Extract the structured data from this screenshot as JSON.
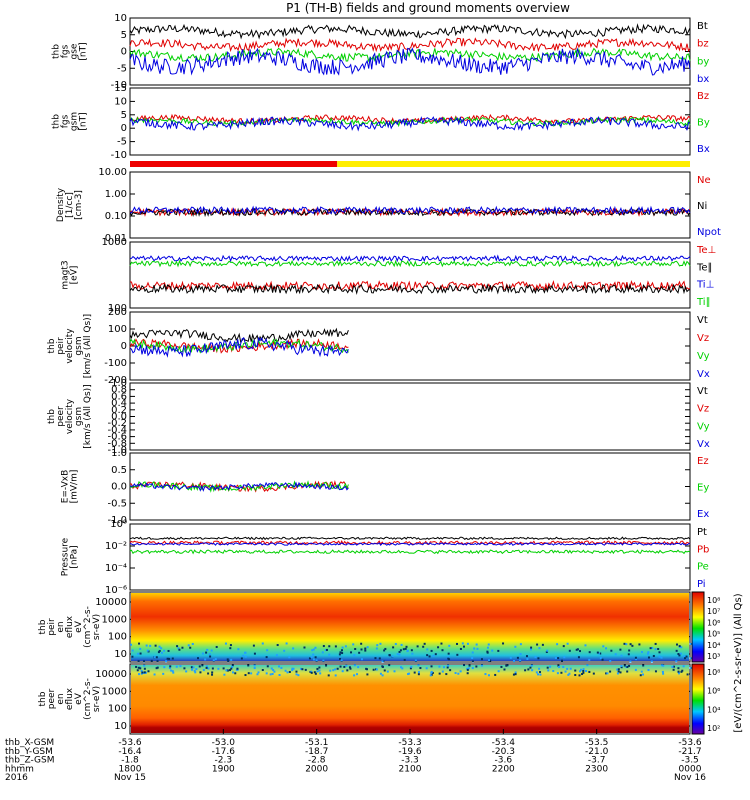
{
  "title": "P1 (TH-B) fields and ground moments overview",
  "colors": {
    "black": "#000000",
    "red": "#e00000",
    "green": "#00d000",
    "blue": "#0000e0",
    "yellow": "#ffee00",
    "bar_red": "#ee0000"
  },
  "chart_data": [
    {
      "type": "line",
      "ylabel": [
        "thb",
        "fgs",
        "gse",
        "[nT]"
      ],
      "ylim": [
        -10,
        10
      ],
      "yticks": [
        "10",
        "5",
        "0",
        "-5",
        "-10"
      ],
      "series": [
        {
          "name": "Bt",
          "color": "black",
          "base": 6,
          "amp": 2
        },
        {
          "name": "bz",
          "color": "red",
          "base": 2,
          "amp": 2
        },
        {
          "name": "by",
          "color": "green",
          "base": -1,
          "amp": 2
        },
        {
          "name": "bx",
          "color": "blue",
          "base": -3,
          "amp": 4
        }
      ]
    },
    {
      "type": "line",
      "ylabel": [
        "thb",
        "fgs",
        "gsm",
        "[nT]"
      ],
      "ylim": [
        -15,
        15
      ],
      "yticks": [
        "15",
        "10",
        "5",
        "0",
        "-5",
        "-10"
      ],
      "series": [
        {
          "name": "Bz",
          "color": "red",
          "base": 1,
          "amp": 2
        },
        {
          "name": "By",
          "color": "green",
          "base": 0,
          "amp": 2
        },
        {
          "name": "Bx",
          "color": "blue",
          "base": -1,
          "amp": 3
        }
      ]
    },
    {
      "type": "line",
      "ylabel": [
        "Density",
        "[1/cc]",
        "[cm-3]"
      ],
      "scale": "log",
      "yticks": [
        "10.00",
        "1.00",
        "0.10",
        "0.01"
      ],
      "series": [
        {
          "name": "Ne",
          "color": "red",
          "base": 0.15,
          "amp": 0.3
        },
        {
          "name": "Ni",
          "color": "black",
          "base": 0.15,
          "amp": 0.3
        },
        {
          "name": "Npot",
          "color": "blue",
          "base": 0.18,
          "amp": 0.3
        }
      ]
    },
    {
      "type": "line",
      "ylabel": [
        "magt3",
        "[eV]"
      ],
      "scale": "log",
      "yticks": [
        "1000",
        "100"
      ],
      "series": [
        {
          "name": "Te⊥",
          "color": "red",
          "base": 150,
          "amp": 0.25
        },
        {
          "name": "Te∥",
          "color": "black",
          "base": 120,
          "amp": 0.25
        },
        {
          "name": "Ti⊥",
          "color": "blue",
          "base": 1000,
          "amp": 0.15
        },
        {
          "name": "Ti∥",
          "color": "green",
          "base": 700,
          "amp": 0.15
        }
      ]
    },
    {
      "type": "line",
      "ylabel": [
        "thb",
        "peir",
        "velocity",
        "gsm",
        "[km/s (All Qs)]"
      ],
      "ylim": [
        -200,
        200
      ],
      "yticks": [
        "200",
        "100",
        "0",
        "-100",
        "-200"
      ],
      "series": [
        {
          "name": "Vt",
          "color": "black",
          "base": 60,
          "amp": 40
        },
        {
          "name": "Vz",
          "color": "red",
          "base": 0,
          "amp": 40
        },
        {
          "name": "Vy",
          "color": "green",
          "base": 0,
          "amp": 40
        },
        {
          "name": "Vx",
          "color": "blue",
          "base": -10,
          "amp": 60
        }
      ]
    },
    {
      "type": "line",
      "ylabel": [
        "thb",
        "peer",
        "velocity",
        "gsm",
        "[km/s (All Qs)]"
      ],
      "ylim": [
        -1,
        1
      ],
      "yticks": [
        "1.0",
        "0.8",
        "0.6",
        "0.4",
        "0.2",
        "0.0",
        "-0.2",
        "-0.4",
        "-0.6",
        "-0.8",
        "-1.0"
      ],
      "series": [
        {
          "name": "Vt",
          "color": "black"
        },
        {
          "name": "Vz",
          "color": "red"
        },
        {
          "name": "Vy",
          "color": "green"
        },
        {
          "name": "Vx",
          "color": "blue"
        }
      ]
    },
    {
      "type": "line",
      "ylabel": [
        "E=-VxB",
        "[mV/m]"
      ],
      "ylim": [
        -1,
        1
      ],
      "yticks": [
        "1.0",
        "0.5",
        "0.0",
        "-0.5",
        "-1.0"
      ],
      "series": [
        {
          "name": "Ez",
          "color": "red",
          "base": 0,
          "amp": 0.15
        },
        {
          "name": "Ey",
          "color": "green",
          "base": 0,
          "amp": 0.15
        },
        {
          "name": "Ex",
          "color": "blue",
          "base": 0,
          "amp": 0.12
        }
      ]
    },
    {
      "type": "line",
      "ylabel": [
        "Pressure",
        "[nPa]"
      ],
      "scale": "log",
      "yticks": [
        "10⁰",
        "10⁻²",
        "10⁻⁴",
        "10⁻⁶"
      ],
      "series": [
        {
          "name": "Pt",
          "color": "black",
          "base": 0.05,
          "amp": 0.2
        },
        {
          "name": "Pb",
          "color": "red",
          "base": 0.02,
          "amp": 0.3
        },
        {
          "name": "Pe",
          "color": "green",
          "base": 0.003,
          "amp": 0.3
        },
        {
          "name": "Pi",
          "color": "blue",
          "base": 0.015,
          "amp": 0.2
        }
      ]
    },
    {
      "type": "heatmap",
      "ylabel": [
        "thb",
        "peir",
        "en",
        "eflux",
        "eV",
        "(cm^2-s-",
        "sr-eV)"
      ],
      "yticks": [
        "10000",
        "1000",
        "100",
        "10"
      ],
      "colorbar_ticks": [
        "10⁸",
        "10⁷",
        "10⁶",
        "10⁵",
        "10⁴",
        "10³"
      ]
    },
    {
      "type": "heatmap",
      "ylabel": [
        "thb",
        "peer",
        "en",
        "eflux",
        "eV",
        "(cm^2-s-",
        "sr-eV)"
      ],
      "yticks": [
        "10000",
        "1000",
        "100",
        "10"
      ],
      "colorbar_ticks": [
        "10⁸",
        "10⁶",
        "10⁴",
        "10²"
      ]
    }
  ],
  "colorbar_label": "[eV/(cm^2-s-sr-eV)] (All Qs)",
  "xaxis": {
    "rows": [
      {
        "label": "thb_X-GSM",
        "values": [
          "-53.6",
          "-53.0",
          "-53.1",
          "-53.3",
          "-53.4",
          "-53.5",
          "-53.6"
        ]
      },
      {
        "label": "thb_Y-GSM",
        "values": [
          "-16.4",
          "-17.6",
          "-18.7",
          "-19.6",
          "-20.3",
          "-21.0",
          "-21.7"
        ]
      },
      {
        "label": "thb_Z-GSM",
        "values": [
          "-1.8",
          "-2.3",
          "-2.8",
          "-3.3",
          "-3.6",
          "-3.7",
          "-3.5"
        ]
      },
      {
        "label": "hhmm",
        "values": [
          "1800",
          "1900",
          "2000",
          "2100",
          "2200",
          "2300",
          "0000"
        ]
      },
      {
        "label": "2016",
        "values": [
          "Nov 15",
          "",
          "",
          "",
          "",
          "",
          "Nov 16"
        ]
      }
    ]
  },
  "mode_bar": {
    "red_fraction": 0.37
  }
}
